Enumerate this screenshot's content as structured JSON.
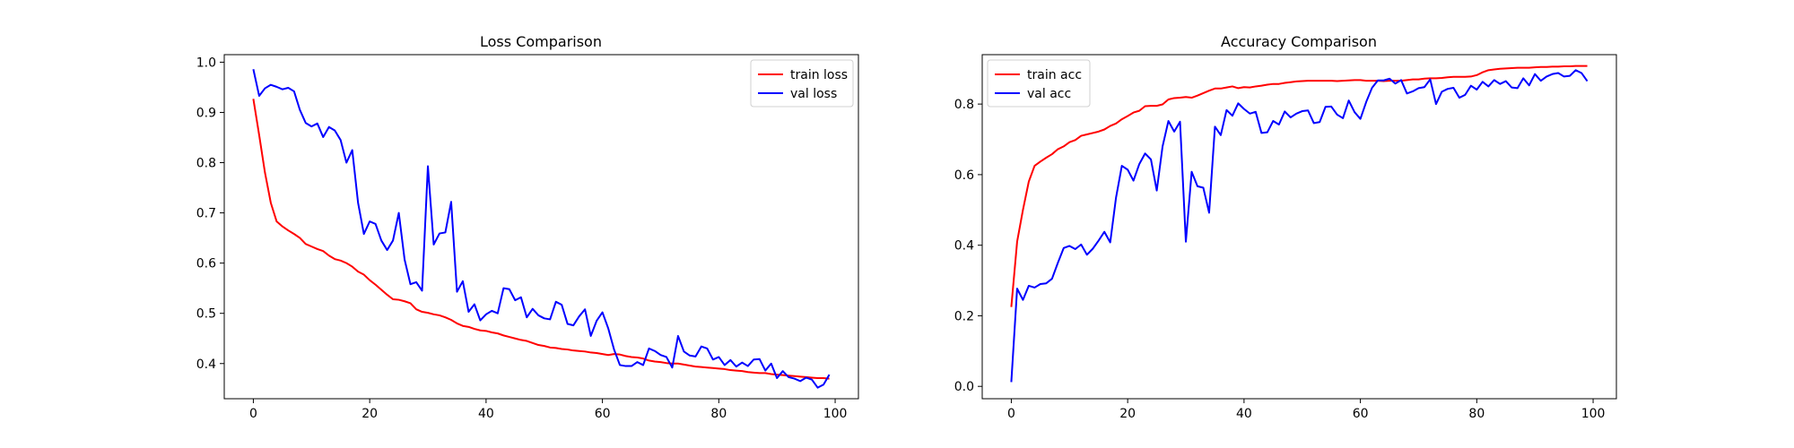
{
  "chart_data": [
    {
      "type": "line",
      "title": "Loss Comparison",
      "xlabel": "",
      "ylabel": "",
      "xlim": [
        -5,
        104
      ],
      "ylim": [
        0.33,
        1.015
      ],
      "xticks": [
        0,
        20,
        40,
        60,
        80,
        100
      ],
      "yticks": [
        0.4,
        0.5,
        0.6,
        0.7,
        0.8,
        0.9,
        1.0
      ],
      "grid": false,
      "legend": "top-right",
      "x": [
        0,
        1,
        2,
        3,
        4,
        5,
        6,
        7,
        8,
        9,
        10,
        11,
        12,
        13,
        14,
        15,
        16,
        17,
        18,
        19,
        20,
        21,
        22,
        23,
        24,
        25,
        26,
        27,
        28,
        29,
        30,
        31,
        32,
        33,
        34,
        35,
        36,
        37,
        38,
        39,
        40,
        41,
        42,
        43,
        44,
        45,
        46,
        47,
        48,
        49,
        50,
        51,
        52,
        53,
        54,
        55,
        56,
        57,
        58,
        59,
        60,
        61,
        62,
        63,
        64,
        65,
        66,
        67,
        68,
        69,
        70,
        71,
        72,
        73,
        74,
        75,
        76,
        77,
        78,
        79,
        80,
        81,
        82,
        83,
        84,
        85,
        86,
        87,
        88,
        89,
        90,
        91,
        92,
        93,
        94,
        95,
        96,
        97,
        98,
        99
      ],
      "series": [
        {
          "name": "train loss",
          "color": "#ff0000",
          "values": [
            0.927,
            0.855,
            0.78,
            0.72,
            0.683,
            0.673,
            0.665,
            0.658,
            0.65,
            0.638,
            0.633,
            0.628,
            0.624,
            0.615,
            0.608,
            0.605,
            0.6,
            0.593,
            0.583,
            0.577,
            0.566,
            0.557,
            0.547,
            0.537,
            0.528,
            0.527,
            0.524,
            0.52,
            0.508,
            0.503,
            0.501,
            0.498,
            0.496,
            0.492,
            0.487,
            0.48,
            0.475,
            0.473,
            0.469,
            0.466,
            0.465,
            0.462,
            0.46,
            0.456,
            0.453,
            0.45,
            0.447,
            0.445,
            0.441,
            0.437,
            0.435,
            0.432,
            0.431,
            0.429,
            0.428,
            0.426,
            0.425,
            0.424,
            0.422,
            0.421,
            0.419,
            0.417,
            0.419,
            0.418,
            0.415,
            0.413,
            0.412,
            0.41,
            0.406,
            0.404,
            0.403,
            0.401,
            0.4,
            0.4,
            0.398,
            0.396,
            0.394,
            0.393,
            0.392,
            0.391,
            0.39,
            0.389,
            0.387,
            0.386,
            0.385,
            0.383,
            0.382,
            0.381,
            0.381,
            0.379,
            0.378,
            0.377,
            0.376,
            0.375,
            0.374,
            0.373,
            0.372,
            0.371,
            0.371,
            0.37
          ]
        },
        {
          "name": "val loss",
          "color": "#0000ff",
          "values": [
            0.986,
            0.933,
            0.948,
            0.955,
            0.951,
            0.946,
            0.949,
            0.942,
            0.905,
            0.879,
            0.872,
            0.878,
            0.851,
            0.871,
            0.864,
            0.845,
            0.8,
            0.825,
            0.72,
            0.658,
            0.683,
            0.678,
            0.645,
            0.626,
            0.645,
            0.7,
            0.607,
            0.558,
            0.562,
            0.545,
            0.793,
            0.637,
            0.659,
            0.661,
            0.722,
            0.543,
            0.564,
            0.503,
            0.518,
            0.486,
            0.498,
            0.505,
            0.5,
            0.55,
            0.548,
            0.526,
            0.532,
            0.492,
            0.509,
            0.496,
            0.49,
            0.488,
            0.523,
            0.517,
            0.479,
            0.476,
            0.494,
            0.508,
            0.455,
            0.485,
            0.502,
            0.47,
            0.428,
            0.397,
            0.395,
            0.395,
            0.403,
            0.397,
            0.43,
            0.425,
            0.417,
            0.413,
            0.392,
            0.455,
            0.424,
            0.416,
            0.414,
            0.434,
            0.43,
            0.408,
            0.413,
            0.397,
            0.407,
            0.394,
            0.402,
            0.395,
            0.408,
            0.409,
            0.386,
            0.4,
            0.371,
            0.385,
            0.373,
            0.37,
            0.365,
            0.372,
            0.368,
            0.352,
            0.358,
            0.378
          ]
        }
      ]
    },
    {
      "type": "line",
      "title": "Accuracy Comparison",
      "xlabel": "",
      "ylabel": "",
      "xlim": [
        -5,
        104
      ],
      "ylim": [
        -0.035,
        0.94
      ],
      "xticks": [
        0,
        20,
        40,
        60,
        80,
        100
      ],
      "yticks": [
        0.0,
        0.2,
        0.4,
        0.6,
        0.8
      ],
      "grid": false,
      "legend": "top-left",
      "x": [
        0,
        1,
        2,
        3,
        4,
        5,
        6,
        7,
        8,
        9,
        10,
        11,
        12,
        13,
        14,
        15,
        16,
        17,
        18,
        19,
        20,
        21,
        22,
        23,
        24,
        25,
        26,
        27,
        28,
        29,
        30,
        31,
        32,
        33,
        34,
        35,
        36,
        37,
        38,
        39,
        40,
        41,
        42,
        43,
        44,
        45,
        46,
        47,
        48,
        49,
        50,
        51,
        52,
        53,
        54,
        55,
        56,
        57,
        58,
        59,
        60,
        61,
        62,
        63,
        64,
        65,
        66,
        67,
        68,
        69,
        70,
        71,
        72,
        73,
        74,
        75,
        76,
        77,
        78,
        79,
        80,
        81,
        82,
        83,
        84,
        85,
        86,
        87,
        88,
        89,
        90,
        91,
        92,
        93,
        94,
        95,
        96,
        97,
        98,
        99
      ],
      "series": [
        {
          "name": "train acc",
          "color": "#ff0000",
          "values": [
            0.225,
            0.41,
            0.5,
            0.58,
            0.625,
            0.637,
            0.648,
            0.658,
            0.672,
            0.68,
            0.692,
            0.698,
            0.71,
            0.714,
            0.718,
            0.722,
            0.728,
            0.738,
            0.745,
            0.757,
            0.766,
            0.776,
            0.781,
            0.794,
            0.795,
            0.795,
            0.799,
            0.813,
            0.817,
            0.818,
            0.82,
            0.818,
            0.824,
            0.831,
            0.838,
            0.844,
            0.844,
            0.847,
            0.85,
            0.845,
            0.848,
            0.847,
            0.85,
            0.852,
            0.855,
            0.857,
            0.857,
            0.86,
            0.862,
            0.864,
            0.865,
            0.866,
            0.866,
            0.866,
            0.866,
            0.866,
            0.865,
            0.866,
            0.867,
            0.868,
            0.868,
            0.866,
            0.866,
            0.866,
            0.865,
            0.866,
            0.866,
            0.866,
            0.868,
            0.87,
            0.87,
            0.872,
            0.873,
            0.873,
            0.874,
            0.876,
            0.877,
            0.877,
            0.877,
            0.878,
            0.882,
            0.89,
            0.896,
            0.898,
            0.9,
            0.901,
            0.902,
            0.903,
            0.903,
            0.903,
            0.904,
            0.905,
            0.905,
            0.906,
            0.906,
            0.907,
            0.907,
            0.908,
            0.908,
            0.908
          ]
        },
        {
          "name": "val acc",
          "color": "#0000ff",
          "values": [
            0.012,
            0.277,
            0.245,
            0.285,
            0.28,
            0.29,
            0.292,
            0.305,
            0.35,
            0.392,
            0.398,
            0.389,
            0.402,
            0.373,
            0.39,
            0.413,
            0.438,
            0.408,
            0.535,
            0.625,
            0.614,
            0.583,
            0.63,
            0.66,
            0.643,
            0.555,
            0.68,
            0.752,
            0.722,
            0.75,
            0.41,
            0.608,
            0.567,
            0.563,
            0.492,
            0.736,
            0.712,
            0.783,
            0.767,
            0.802,
            0.786,
            0.773,
            0.778,
            0.718,
            0.72,
            0.752,
            0.742,
            0.779,
            0.762,
            0.773,
            0.78,
            0.782,
            0.746,
            0.749,
            0.792,
            0.793,
            0.77,
            0.76,
            0.81,
            0.777,
            0.758,
            0.806,
            0.846,
            0.867,
            0.867,
            0.872,
            0.858,
            0.868,
            0.83,
            0.836,
            0.845,
            0.848,
            0.87,
            0.8,
            0.835,
            0.843,
            0.846,
            0.818,
            0.826,
            0.852,
            0.841,
            0.863,
            0.85,
            0.868,
            0.857,
            0.865,
            0.847,
            0.845,
            0.873,
            0.853,
            0.885,
            0.866,
            0.878,
            0.885,
            0.888,
            0.878,
            0.88,
            0.896,
            0.888,
            0.865
          ]
        }
      ]
    }
  ]
}
